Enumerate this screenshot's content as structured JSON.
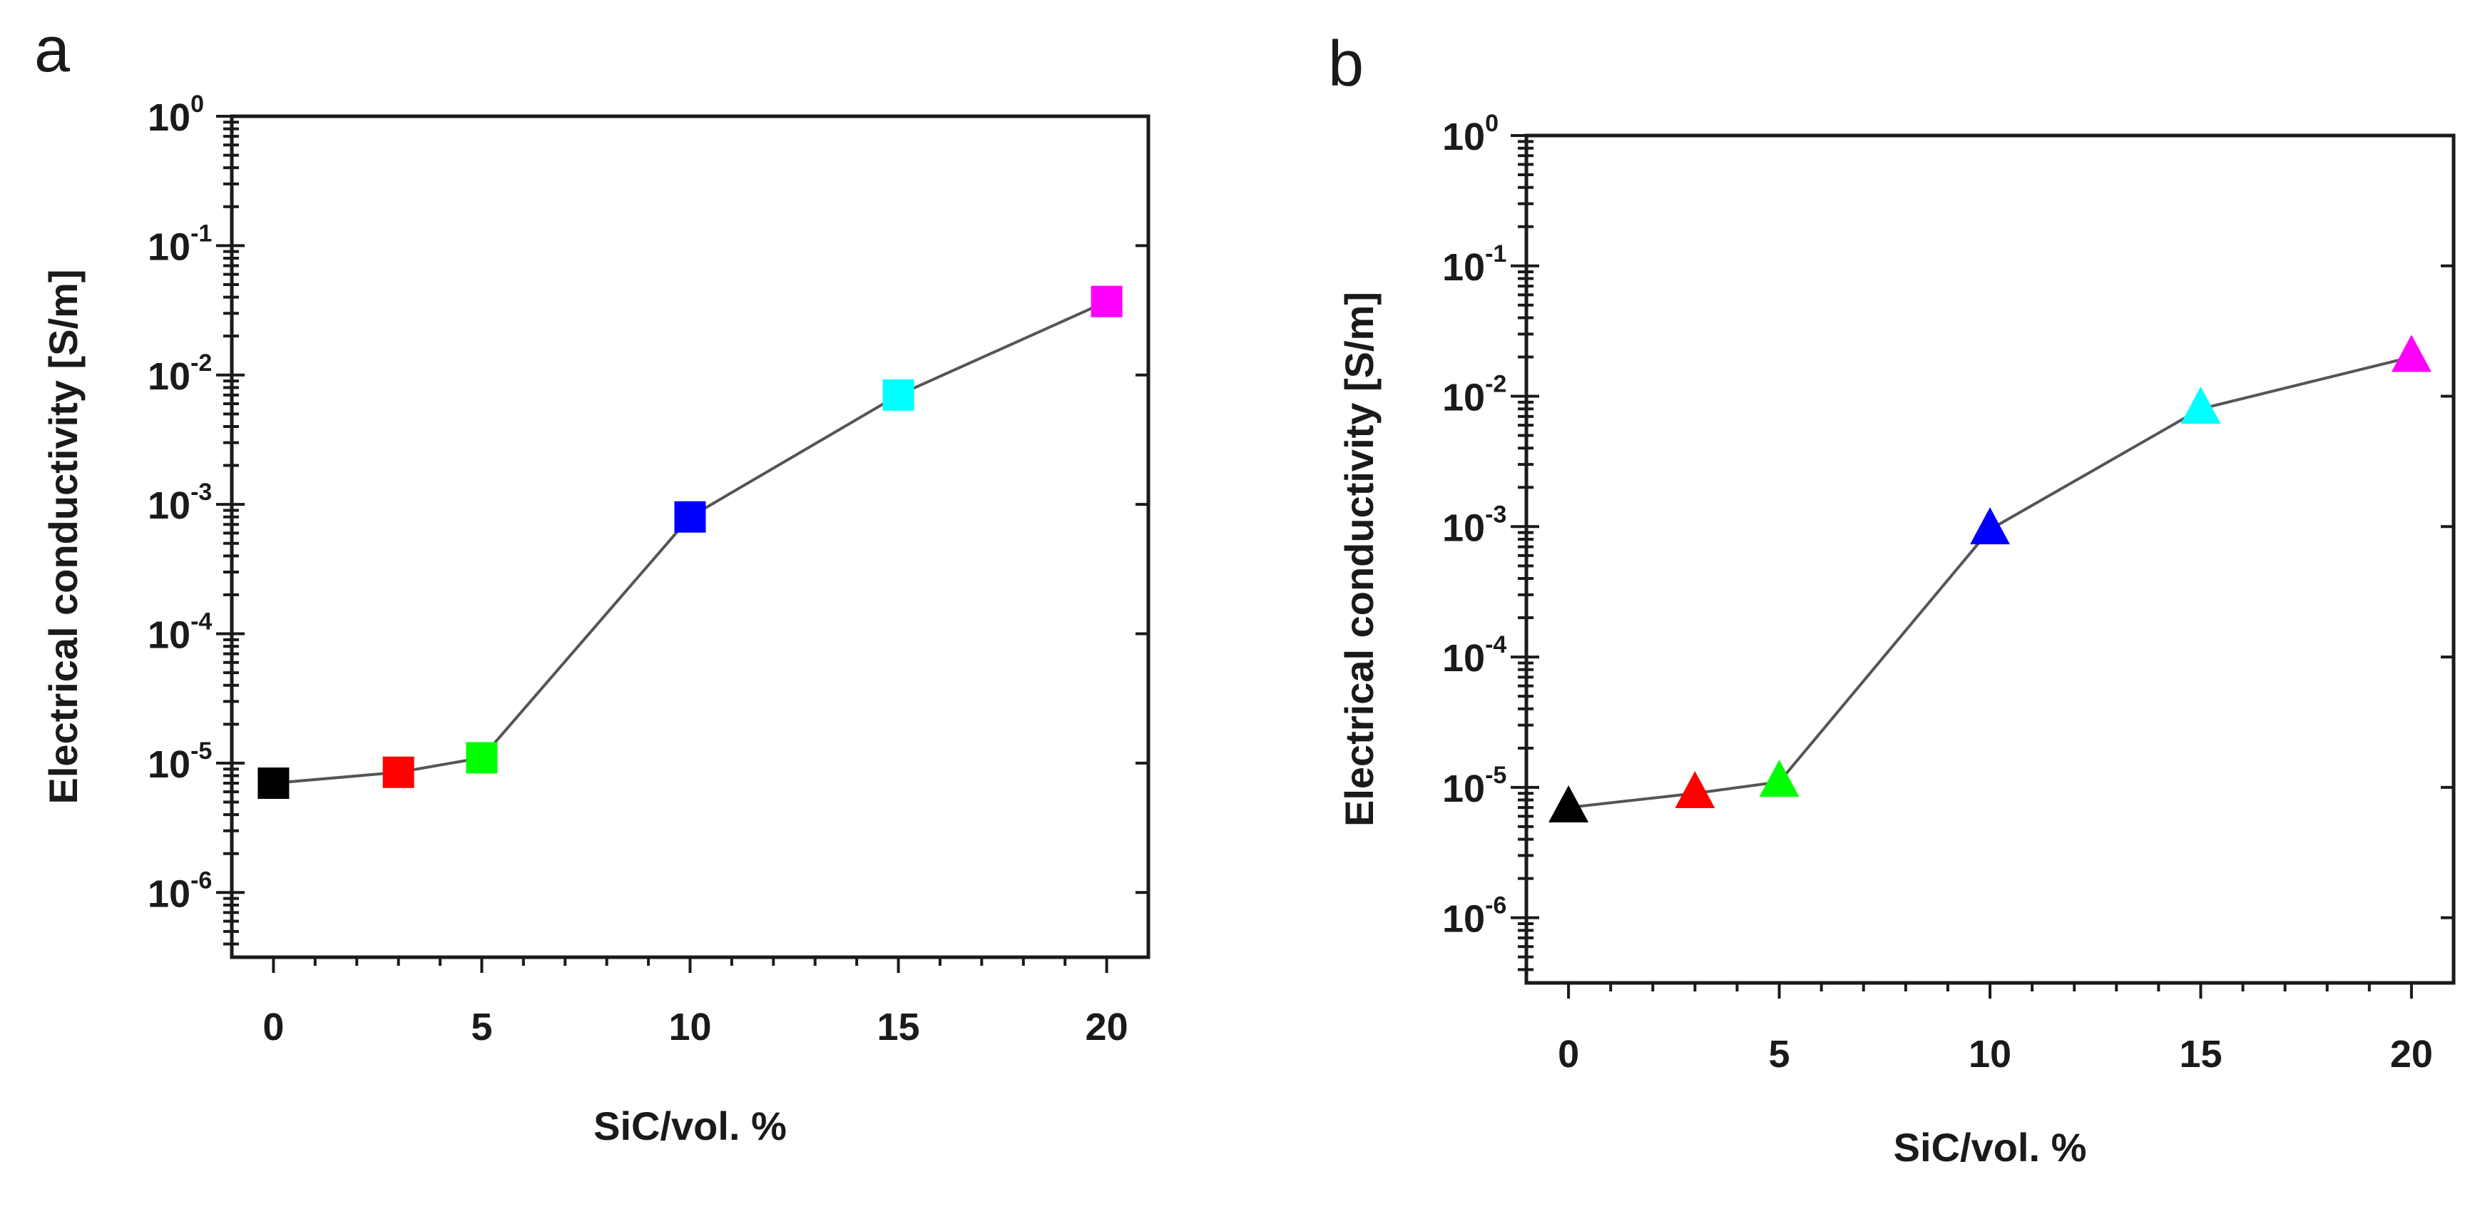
{
  "chart_data": [
    {
      "panel_label": "a",
      "type": "line",
      "marker": "square",
      "xlabel": "SiC/vol. %",
      "ylabel": "Electrical conductivity [S/m]",
      "xlim": [
        -1,
        21
      ],
      "ylim_log10": [
        -6.5,
        0
      ],
      "yscale": "log",
      "x_ticks": [
        "0",
        "5",
        "10",
        "15",
        "20"
      ],
      "y_ticks": [
        {
          "base": "10",
          "exp": "0"
        },
        {
          "base": "10",
          "exp": "-1"
        },
        {
          "base": "10",
          "exp": "-2"
        },
        {
          "base": "10",
          "exp": "-3"
        },
        {
          "base": "10",
          "exp": "-4"
        },
        {
          "base": "10",
          "exp": "-5"
        },
        {
          "base": "10",
          "exp": "-6"
        }
      ],
      "series": [
        {
          "name": "conductivity",
          "x": [
            0,
            3,
            5,
            10,
            15,
            20
          ],
          "y": [
            7e-06,
            8.5e-06,
            1.1e-05,
            0.0008,
            0.007,
            0.037
          ],
          "colors": [
            "#000000",
            "#ff0000",
            "#00ff00",
            "#0000ff",
            "#00ffff",
            "#ff00ff"
          ]
        }
      ]
    },
    {
      "panel_label": "b",
      "type": "line",
      "marker": "triangle",
      "xlabel": "SiC/vol. %",
      "ylabel": "Electrical conductivity [S/m]",
      "xlim": [
        -1,
        21
      ],
      "ylim_log10": [
        -6.5,
        0
      ],
      "yscale": "log",
      "x_ticks": [
        "0",
        "5",
        "10",
        "15",
        "20"
      ],
      "y_ticks": [
        {
          "base": "10",
          "exp": "0"
        },
        {
          "base": "10",
          "exp": "-1"
        },
        {
          "base": "10",
          "exp": "-2"
        },
        {
          "base": "10",
          "exp": "-3"
        },
        {
          "base": "10",
          "exp": "-4"
        },
        {
          "base": "10",
          "exp": "-5"
        },
        {
          "base": "10",
          "exp": "-6"
        }
      ],
      "series": [
        {
          "name": "conductivity",
          "x": [
            0,
            3,
            5,
            10,
            15,
            20
          ],
          "y": [
            7e-06,
            9e-06,
            1.1e-05,
            0.00095,
            0.008,
            0.02
          ],
          "colors": [
            "#000000",
            "#ff0000",
            "#00ff00",
            "#0000ff",
            "#00ffff",
            "#ff00ff"
          ]
        }
      ]
    }
  ]
}
